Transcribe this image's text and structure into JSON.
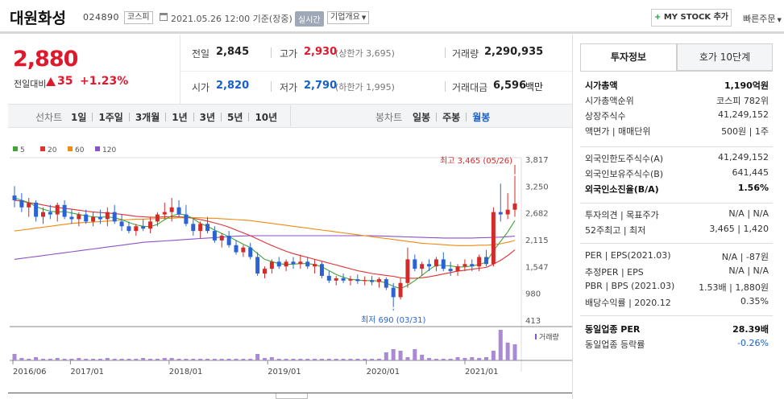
{
  "header": {
    "title": "대원화성",
    "code": "024890",
    "market": "코스피",
    "datetime": "2021.05.26 12:00 기준(장중)",
    "realtime": "실시간",
    "overview": "기업개요",
    "mystock_label": "MY STOCK 추가",
    "quick_order": "빠른주문"
  },
  "price": {
    "current": "2,880",
    "change_label": "전일대비",
    "change": "35",
    "change_pct": "+1.23%"
  },
  "quote": {
    "prev_label": "전일",
    "prev": "2,845",
    "high_label": "고가",
    "high": "2,930",
    "upper_limit": "(상한가 3,695)",
    "volume_label": "거래량",
    "volume": "2,290,935",
    "open_label": "시가",
    "open": "2,820",
    "low_label": "저가",
    "low": "2,790",
    "lower_limit": "(하한가 1,995)",
    "amount_label": "거래대금",
    "amount": "6,596",
    "amount_unit": "백만"
  },
  "period_bar": {
    "line_label": "선차트",
    "line_items": [
      "1일",
      "1주일",
      "3개월",
      "1년",
      "3년",
      "5년",
      "10년"
    ],
    "candle_label": "봉차트",
    "candle_items": [
      "일봉",
      "주봉",
      "월봉"
    ],
    "active": "월봉"
  },
  "chart_data": {
    "type": "line",
    "legend": [
      "5",
      "20",
      "60",
      "120"
    ],
    "legend_colors": [
      "#3fa535",
      "#e03030",
      "#f08a10",
      "#8a52c8"
    ],
    "y_ticks": [
      "3,817",
      "3,250",
      "2,682",
      "2,115",
      "1,547",
      "980",
      "413"
    ],
    "y_tick_values": [
      3817,
      3250,
      2682,
      2115,
      1547,
      980,
      413
    ],
    "x_ticks": [
      "2016/06",
      "2017/01",
      "2018/01",
      "2019/01",
      "2020/01",
      "2021/01"
    ],
    "high_note": "최고 3,465 (05/26)",
    "low_note": "최저 690 (03/31)",
    "volume_label": "거래량",
    "up_color": "#d42a2a",
    "down_color": "#2b63d6",
    "candles": [
      {
        "o": 3050,
        "h": 3250,
        "l": 2800,
        "c": 2950
      },
      {
        "o": 2950,
        "h": 3100,
        "l": 2700,
        "c": 2800
      },
      {
        "o": 2800,
        "h": 3000,
        "l": 2600,
        "c": 2900
      },
      {
        "o": 2900,
        "h": 2950,
        "l": 2500,
        "c": 2600
      },
      {
        "o": 2600,
        "h": 2800,
        "l": 2450,
        "c": 2700
      },
      {
        "o": 2700,
        "h": 2850,
        "l": 2550,
        "c": 2650
      },
      {
        "o": 2650,
        "h": 2900,
        "l": 2500,
        "c": 2850
      },
      {
        "o": 2850,
        "h": 2950,
        "l": 2550,
        "c": 2600
      },
      {
        "o": 2600,
        "h": 2750,
        "l": 2450,
        "c": 2550
      },
      {
        "o": 2550,
        "h": 2700,
        "l": 2400,
        "c": 2650
      },
      {
        "o": 2650,
        "h": 2750,
        "l": 2450,
        "c": 2500
      },
      {
        "o": 2500,
        "h": 2700,
        "l": 2400,
        "c": 2600
      },
      {
        "o": 2600,
        "h": 2750,
        "l": 2450,
        "c": 2550
      },
      {
        "o": 2550,
        "h": 2800,
        "l": 2400,
        "c": 2700
      },
      {
        "o": 2700,
        "h": 2850,
        "l": 2450,
        "c": 2500
      },
      {
        "o": 2500,
        "h": 2650,
        "l": 2300,
        "c": 2400
      },
      {
        "o": 2400,
        "h": 2500,
        "l": 2250,
        "c": 2300
      },
      {
        "o": 2300,
        "h": 2450,
        "l": 2200,
        "c": 2400
      },
      {
        "o": 2400,
        "h": 2550,
        "l": 2300,
        "c": 2350
      },
      {
        "o": 2350,
        "h": 2600,
        "l": 2250,
        "c": 2500
      },
      {
        "o": 2500,
        "h": 2700,
        "l": 2400,
        "c": 2650
      },
      {
        "o": 2650,
        "h": 2900,
        "l": 2550,
        "c": 2700
      },
      {
        "o": 2700,
        "h": 3000,
        "l": 2500,
        "c": 2800
      },
      {
        "o": 2800,
        "h": 2950,
        "l": 2600,
        "c": 2650
      },
      {
        "o": 2650,
        "h": 2850,
        "l": 2400,
        "c": 2450
      },
      {
        "o": 2450,
        "h": 2550,
        "l": 2200,
        "c": 2300
      },
      {
        "o": 2300,
        "h": 2500,
        "l": 2150,
        "c": 2450
      },
      {
        "o": 2450,
        "h": 2600,
        "l": 2250,
        "c": 2300
      },
      {
        "o": 2300,
        "h": 2400,
        "l": 2050,
        "c": 2100
      },
      {
        "o": 2100,
        "h": 2250,
        "l": 1950,
        "c": 2200
      },
      {
        "o": 2200,
        "h": 2300,
        "l": 1950,
        "c": 2000
      },
      {
        "o": 2000,
        "h": 2100,
        "l": 1800,
        "c": 1850
      },
      {
        "o": 1850,
        "h": 2000,
        "l": 1750,
        "c": 1950
      },
      {
        "o": 1950,
        "h": 2050,
        "l": 1700,
        "c": 1750
      },
      {
        "o": 1750,
        "h": 1850,
        "l": 1350,
        "c": 1400
      },
      {
        "o": 1400,
        "h": 1550,
        "l": 1300,
        "c": 1500
      },
      {
        "o": 1500,
        "h": 1700,
        "l": 1400,
        "c": 1650
      },
      {
        "o": 1650,
        "h": 1750,
        "l": 1500,
        "c": 1550
      },
      {
        "o": 1550,
        "h": 1700,
        "l": 1450,
        "c": 1650
      },
      {
        "o": 1650,
        "h": 1750,
        "l": 1500,
        "c": 1600
      },
      {
        "o": 1600,
        "h": 1800,
        "l": 1500,
        "c": 1650
      },
      {
        "o": 1650,
        "h": 1750,
        "l": 1500,
        "c": 1550
      },
      {
        "o": 1550,
        "h": 1700,
        "l": 1400,
        "c": 1600
      },
      {
        "o": 1600,
        "h": 1650,
        "l": 1300,
        "c": 1350
      },
      {
        "o": 1350,
        "h": 1450,
        "l": 1200,
        "c": 1250
      },
      {
        "o": 1250,
        "h": 1350,
        "l": 1150,
        "c": 1300
      },
      {
        "o": 1300,
        "h": 1400,
        "l": 1200,
        "c": 1250
      },
      {
        "o": 1250,
        "h": 1350,
        "l": 1150,
        "c": 1280
      },
      {
        "o": 1280,
        "h": 1380,
        "l": 1180,
        "c": 1240
      },
      {
        "o": 1240,
        "h": 1340,
        "l": 1150,
        "c": 1260
      },
      {
        "o": 1260,
        "h": 1350,
        "l": 1150,
        "c": 1220
      },
      {
        "o": 1220,
        "h": 1320,
        "l": 1100,
        "c": 1280
      },
      {
        "o": 1280,
        "h": 1320,
        "l": 1050,
        "c": 1100
      },
      {
        "o": 1100,
        "h": 1200,
        "l": 690,
        "c": 900
      },
      {
        "o": 900,
        "h": 1300,
        "l": 850,
        "c": 1200
      },
      {
        "o": 1200,
        "h": 1950,
        "l": 1100,
        "c": 1700
      },
      {
        "o": 1700,
        "h": 1800,
        "l": 1450,
        "c": 1500
      },
      {
        "o": 1500,
        "h": 1650,
        "l": 1350,
        "c": 1600
      },
      {
        "o": 1600,
        "h": 1700,
        "l": 1450,
        "c": 1550
      },
      {
        "o": 1550,
        "h": 1750,
        "l": 1450,
        "c": 1700
      },
      {
        "o": 1700,
        "h": 1850,
        "l": 1450,
        "c": 1500
      },
      {
        "o": 1500,
        "h": 1650,
        "l": 1350,
        "c": 1450
      },
      {
        "o": 1450,
        "h": 1600,
        "l": 1350,
        "c": 1550
      },
      {
        "o": 1550,
        "h": 1700,
        "l": 1450,
        "c": 1600
      },
      {
        "o": 1600,
        "h": 1700,
        "l": 1450,
        "c": 1550
      },
      {
        "o": 1550,
        "h": 1800,
        "l": 1450,
        "c": 1750
      },
      {
        "o": 1750,
        "h": 1900,
        "l": 1550,
        "c": 1600
      },
      {
        "o": 1600,
        "h": 2800,
        "l": 1550,
        "c": 2700
      },
      {
        "o": 2700,
        "h": 3300,
        "l": 2500,
        "c": 2650
      },
      {
        "o": 2650,
        "h": 3100,
        "l": 2550,
        "c": 2750
      },
      {
        "o": 2750,
        "h": 3465,
        "l": 2600,
        "c": 2880
      }
    ],
    "ma5": [
      3000,
      2950,
      2900,
      2820,
      2760,
      2720,
      2700,
      2710,
      2680,
      2650,
      2620,
      2600,
      2590,
      2600,
      2580,
      2540,
      2480,
      2430,
      2400,
      2390,
      2440,
      2540,
      2620,
      2660,
      2640,
      2560,
      2460,
      2400,
      2320,
      2250,
      2180,
      2100,
      2020,
      1950,
      1820,
      1700,
      1650,
      1610,
      1590,
      1600,
      1610,
      1610,
      1590,
      1540,
      1460,
      1380,
      1320,
      1280,
      1260,
      1250,
      1250,
      1240,
      1200,
      1130,
      1080,
      1150,
      1250,
      1360,
      1480,
      1580,
      1570,
      1560,
      1540,
      1540,
      1560,
      1590,
      1640,
      1880,
      2080,
      2280,
      2520
    ],
    "ma20": [
      2950,
      2930,
      2900,
      2880,
      2850,
      2820,
      2800,
      2780,
      2760,
      2740,
      2720,
      2700,
      2690,
      2680,
      2670,
      2650,
      2630,
      2610,
      2600,
      2590,
      2590,
      2600,
      2600,
      2600,
      2590,
      2570,
      2540,
      2510,
      2470,
      2430,
      2380,
      2320,
      2260,
      2200,
      2130,
      2060,
      1990,
      1930,
      1870,
      1820,
      1780,
      1740,
      1700,
      1660,
      1620,
      1580,
      1540,
      1500,
      1460,
      1430,
      1400,
      1380,
      1360,
      1340,
      1310,
      1300,
      1300,
      1310,
      1330,
      1360,
      1390,
      1420,
      1450,
      1470,
      1490,
      1510,
      1530,
      1600,
      1680,
      1780,
      1900
    ],
    "ma60": [
      2300,
      2320,
      2340,
      2360,
      2380,
      2400,
      2420,
      2440,
      2460,
      2470,
      2480,
      2490,
      2500,
      2510,
      2520,
      2530,
      2540,
      2550,
      2550,
      2560,
      2560,
      2570,
      2570,
      2580,
      2580,
      2580,
      2580,
      2570,
      2570,
      2560,
      2550,
      2540,
      2530,
      2520,
      2500,
      2480,
      2460,
      2440,
      2420,
      2400,
      2380,
      2360,
      2340,
      2320,
      2300,
      2280,
      2260,
      2240,
      2220,
      2200,
      2180,
      2160,
      2140,
      2120,
      2100,
      2080,
      2060,
      2040,
      2030,
      2020,
      2010,
      2000,
      1990,
      1990,
      1990,
      2000,
      2000,
      2010,
      2030,
      2060,
      2100
    ],
    "ma120": [
      1700,
      1720,
      1740,
      1760,
      1780,
      1800,
      1820,
      1840,
      1860,
      1880,
      1900,
      1920,
      1940,
      1960,
      1980,
      2000,
      2020,
      2040,
      2060,
      2070,
      2080,
      2090,
      2100,
      2110,
      2120,
      2130,
      2140,
      2150,
      2160,
      2170,
      2180,
      2190,
      2195,
      2200,
      2200,
      2200,
      2200,
      2200,
      2200,
      2200,
      2200,
      2200,
      2200,
      2200,
      2200,
      2200,
      2200,
      2200,
      2200,
      2200,
      2200,
      2195,
      2190,
      2185,
      2180,
      2175,
      2170,
      2165,
      2160,
      2155,
      2150,
      2150,
      2150,
      2150,
      2150,
      2155,
      2160,
      2165,
      2170,
      2180,
      2190
    ],
    "volumes": [
      8,
      3,
      2,
      4,
      2,
      2,
      3,
      2,
      2,
      3,
      2,
      2,
      2,
      3,
      2,
      2,
      2,
      2,
      3,
      2,
      2,
      3,
      3,
      2,
      2,
      2,
      2,
      2,
      2,
      2,
      2,
      2,
      2,
      2,
      8,
      3,
      4,
      2,
      2,
      2,
      2,
      2,
      2,
      2,
      2,
      2,
      2,
      2,
      2,
      2,
      2,
      2,
      10,
      14,
      12,
      4,
      14,
      7,
      3,
      2,
      2,
      2,
      4,
      3,
      4,
      3,
      4,
      12,
      38,
      22,
      20
    ]
  },
  "right_panel": {
    "tabs": [
      "투자정보",
      "호가 10단계"
    ],
    "rows1": [
      {
        "k": "시가총액",
        "v": "1,190억원",
        "bold": true
      },
      {
        "k": "시가총액순위",
        "v": "코스피 782위"
      },
      {
        "k": "상장주식수",
        "v": "41,249,152"
      },
      {
        "k": "액면가 | 매매단위",
        "v": "500원 | 1주"
      }
    ],
    "rows2": [
      {
        "k": "외국인한도주식수(A)",
        "v": "41,249,152"
      },
      {
        "k": "외국인보유주식수(B)",
        "v": "641,445"
      },
      {
        "k": "외국인소진율(B/A)",
        "v": "1.56%",
        "bold": true
      }
    ],
    "rows3": [
      {
        "k": "투자의견 | 목표주가",
        "v": "N/A | N/A"
      },
      {
        "k": "52주최고 | 최저",
        "v": "3,465 | 1,420"
      }
    ],
    "rows4": [
      {
        "k": "PER | EPS(2021.03)",
        "v": "N/A | -87원"
      },
      {
        "k": "추정PER | EPS",
        "v": "N/A | N/A"
      },
      {
        "k": "PBR | BPS (2021.03)",
        "v": "1.53배 | 1,880원"
      },
      {
        "k": "배당수익률 | 2020.12",
        "v": "0.35%"
      }
    ],
    "rows5": [
      {
        "k": "동일업종 PER",
        "v": "28.39배",
        "bold": true
      },
      {
        "k": "동일업종 등락률",
        "v": "-0.26%",
        "blue": true
      }
    ]
  }
}
